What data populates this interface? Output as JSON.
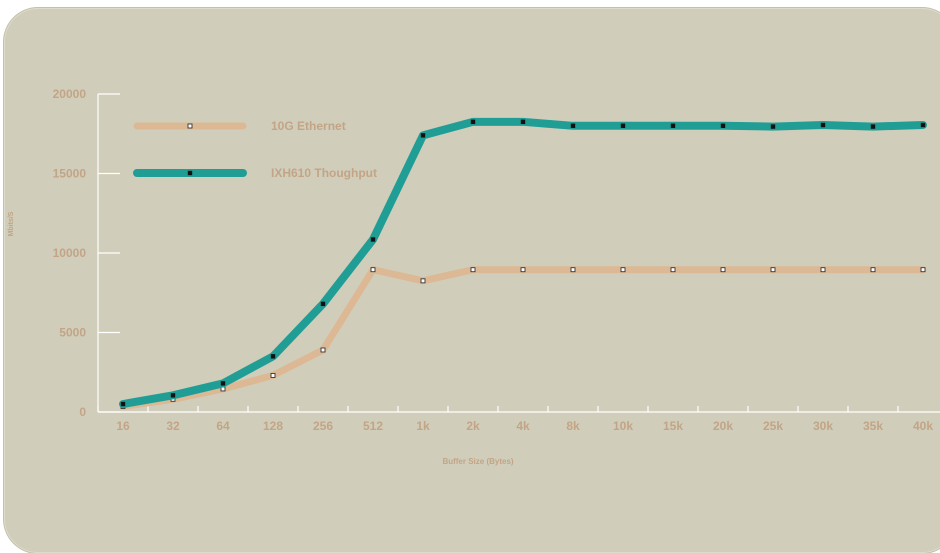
{
  "chart_data": {
    "type": "line",
    "title": "",
    "xlabel": "Buffer Size (Bytes)",
    "ylabel": "Mbits/S",
    "categories": [
      "16",
      "32",
      "64",
      "128",
      "256",
      "512",
      "1k",
      "2k",
      "4k",
      "8k",
      "10k",
      "15k",
      "20k",
      "25k",
      "30k",
      "35k",
      "40k"
    ],
    "ylim": [
      0,
      20000
    ],
    "yticks": [
      0,
      5000,
      10000,
      15000,
      20000
    ],
    "grid": false,
    "legend_position": "top-left",
    "series": [
      {
        "name": "10G Ethernet",
        "color": "#dcb994",
        "marker": "hollow-square",
        "values": [
          350,
          800,
          1450,
          2300,
          3900,
          8950,
          8250,
          8950,
          8950,
          8950,
          8950,
          8950,
          8950,
          8950,
          8950,
          8950,
          8950
        ]
      },
      {
        "name": "IXH610 Thoughput",
        "color": "#209e96",
        "marker": "filled-square",
        "values": [
          500,
          1050,
          1800,
          3500,
          6800,
          10850,
          17400,
          18250,
          18250,
          18000,
          18000,
          18000,
          18000,
          17950,
          18050,
          17950,
          18050
        ]
      }
    ]
  }
}
